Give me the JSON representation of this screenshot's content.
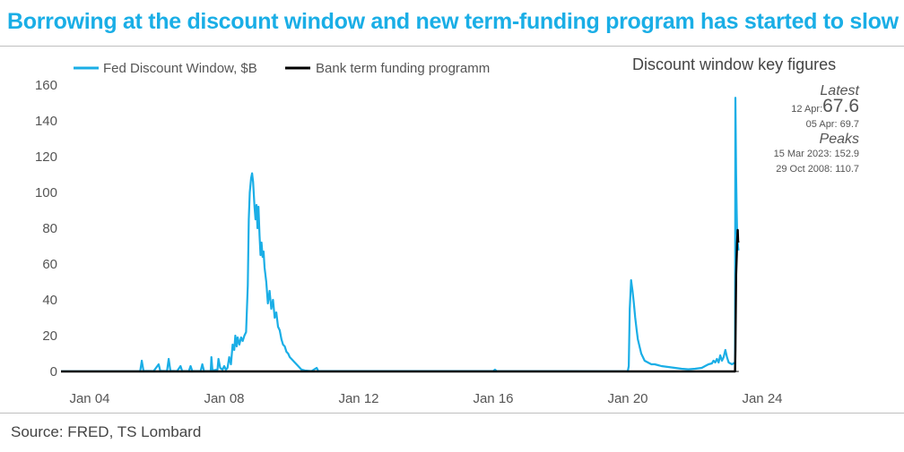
{
  "header": {
    "title": "Borrowing at the discount window and new term-funding program has started to slow"
  },
  "footer": {
    "source": "Source: FRED, TS Lombard"
  },
  "key_figures": {
    "title": "Discount window key figures",
    "latest_heading": "Latest",
    "latest_date": "12 Apr:",
    "latest_value": "67.6",
    "prior": "05 Apr: 69.7",
    "peaks_heading": "Peaks",
    "peak1": "15 Mar 2023: 152.9",
    "peak2": "29 Oct 2008: 110.7"
  },
  "colors": {
    "discount": "#1aaee6",
    "btfp": "#000000",
    "title": "#1aaee6"
  },
  "chart_data": {
    "type": "line",
    "title": "Borrowing at the discount window and new term-funding program has started to slow",
    "xlabel": "",
    "ylabel": "",
    "xlim": [
      2003.5,
      2024.6
    ],
    "ylim": [
      0,
      160
    ],
    "yticks": [
      0,
      20,
      40,
      60,
      80,
      100,
      120,
      140,
      160
    ],
    "xticks": [
      {
        "label": "Jan 04",
        "x": 2004
      },
      {
        "label": "Jan 08",
        "x": 2008
      },
      {
        "label": "Jan 12",
        "x": 2012
      },
      {
        "label": "Jan 16",
        "x": 2016
      },
      {
        "label": "Jan 20",
        "x": 2020
      },
      {
        "label": "Jan 24",
        "x": 2024
      }
    ],
    "legend": {
      "position": "top-left"
    },
    "series": [
      {
        "name": "Fed Discount Window, $B",
        "color": "#1aaee6",
        "points": [
          [
            2003.0,
            0.1
          ],
          [
            2005.5,
            0.1
          ],
          [
            2005.55,
            6
          ],
          [
            2005.6,
            0.3
          ],
          [
            2005.9,
            0.2
          ],
          [
            2006.05,
            4
          ],
          [
            2006.1,
            0.3
          ],
          [
            2006.3,
            0.2
          ],
          [
            2006.35,
            7
          ],
          [
            2006.4,
            0.3
          ],
          [
            2006.6,
            0.2
          ],
          [
            2006.7,
            3
          ],
          [
            2006.75,
            0.2
          ],
          [
            2006.95,
            0.2
          ],
          [
            2007.0,
            3
          ],
          [
            2007.05,
            0.2
          ],
          [
            2007.3,
            0.2
          ],
          [
            2007.35,
            4
          ],
          [
            2007.4,
            0.2
          ],
          [
            2007.6,
            0.2
          ],
          [
            2007.62,
            8
          ],
          [
            2007.65,
            0.5
          ],
          [
            2007.8,
            1
          ],
          [
            2007.83,
            7
          ],
          [
            2007.88,
            2
          ],
          [
            2007.95,
            1
          ],
          [
            2008.0,
            3
          ],
          [
            2008.05,
            1
          ],
          [
            2008.1,
            2
          ],
          [
            2008.15,
            8
          ],
          [
            2008.2,
            4
          ],
          [
            2008.25,
            15
          ],
          [
            2008.3,
            12
          ],
          [
            2008.33,
            20
          ],
          [
            2008.37,
            14
          ],
          [
            2008.4,
            19
          ],
          [
            2008.45,
            15
          ],
          [
            2008.5,
            19
          ],
          [
            2008.55,
            17
          ],
          [
            2008.6,
            20
          ],
          [
            2008.65,
            22
          ],
          [
            2008.7,
            48
          ],
          [
            2008.73,
            85
          ],
          [
            2008.76,
            100
          ],
          [
            2008.8,
            108
          ],
          [
            2008.83,
            110.7
          ],
          [
            2008.86,
            106
          ],
          [
            2008.9,
            92
          ],
          [
            2008.93,
            85
          ],
          [
            2008.96,
            93
          ],
          [
            2008.99,
            80
          ],
          [
            2009.02,
            92
          ],
          [
            2009.05,
            76
          ],
          [
            2009.08,
            65
          ],
          [
            2009.11,
            72
          ],
          [
            2009.14,
            64
          ],
          [
            2009.17,
            67
          ],
          [
            2009.2,
            58
          ],
          [
            2009.25,
            50
          ],
          [
            2009.3,
            38
          ],
          [
            2009.35,
            45
          ],
          [
            2009.4,
            35
          ],
          [
            2009.45,
            40
          ],
          [
            2009.5,
            30
          ],
          [
            2009.55,
            33
          ],
          [
            2009.6,
            25
          ],
          [
            2009.65,
            23
          ],
          [
            2009.7,
            18
          ],
          [
            2009.75,
            15
          ],
          [
            2009.8,
            14
          ],
          [
            2009.85,
            11
          ],
          [
            2009.9,
            10
          ],
          [
            2009.95,
            8
          ],
          [
            2010.0,
            7
          ],
          [
            2010.1,
            5
          ],
          [
            2010.2,
            3
          ],
          [
            2010.3,
            1
          ],
          [
            2010.4,
            0.5
          ],
          [
            2010.6,
            0.2
          ],
          [
            2010.75,
            2
          ],
          [
            2010.8,
            0.2
          ],
          [
            2016.0,
            0.2
          ],
          [
            2016.05,
            1
          ],
          [
            2016.1,
            0.2
          ],
          [
            2019.5,
            0.1
          ],
          [
            2020.0,
            0.1
          ],
          [
            2020.03,
            3
          ],
          [
            2020.06,
            35
          ],
          [
            2020.1,
            51
          ],
          [
            2020.14,
            45
          ],
          [
            2020.18,
            38
          ],
          [
            2020.22,
            30
          ],
          [
            2020.26,
            24
          ],
          [
            2020.3,
            18
          ],
          [
            2020.35,
            14
          ],
          [
            2020.4,
            10
          ],
          [
            2020.45,
            8
          ],
          [
            2020.5,
            6
          ],
          [
            2020.6,
            5
          ],
          [
            2020.7,
            4
          ],
          [
            2020.8,
            4
          ],
          [
            2020.9,
            3.5
          ],
          [
            2021.0,
            3
          ],
          [
            2021.2,
            2.5
          ],
          [
            2021.4,
            2
          ],
          [
            2021.6,
            1.5
          ],
          [
            2021.8,
            1.2
          ],
          [
            2022.0,
            1.5
          ],
          [
            2022.2,
            2
          ],
          [
            2022.3,
            3
          ],
          [
            2022.4,
            4
          ],
          [
            2022.5,
            4.5
          ],
          [
            2022.55,
            6
          ],
          [
            2022.6,
            5
          ],
          [
            2022.65,
            7
          ],
          [
            2022.7,
            5
          ],
          [
            2022.75,
            9
          ],
          [
            2022.8,
            6
          ],
          [
            2022.85,
            8
          ],
          [
            2022.9,
            12
          ],
          [
            2022.95,
            8
          ],
          [
            2023.0,
            5
          ],
          [
            2023.1,
            4
          ],
          [
            2023.19,
            5
          ],
          [
            2023.2,
            152.9
          ],
          [
            2023.22,
            110
          ],
          [
            2023.24,
            88
          ],
          [
            2023.25,
            78
          ],
          [
            2023.27,
            72
          ],
          [
            2023.28,
            69.7
          ],
          [
            2023.29,
            67.6
          ]
        ]
      },
      {
        "name": "Bank term funding programm",
        "color": "#000000",
        "points": [
          [
            2003.0,
            0
          ],
          [
            2023.19,
            0
          ],
          [
            2023.2,
            12
          ],
          [
            2023.22,
            54
          ],
          [
            2023.24,
            65
          ],
          [
            2023.25,
            72
          ],
          [
            2023.27,
            79
          ],
          [
            2023.28,
            73
          ],
          [
            2023.29,
            72
          ]
        ]
      }
    ]
  }
}
